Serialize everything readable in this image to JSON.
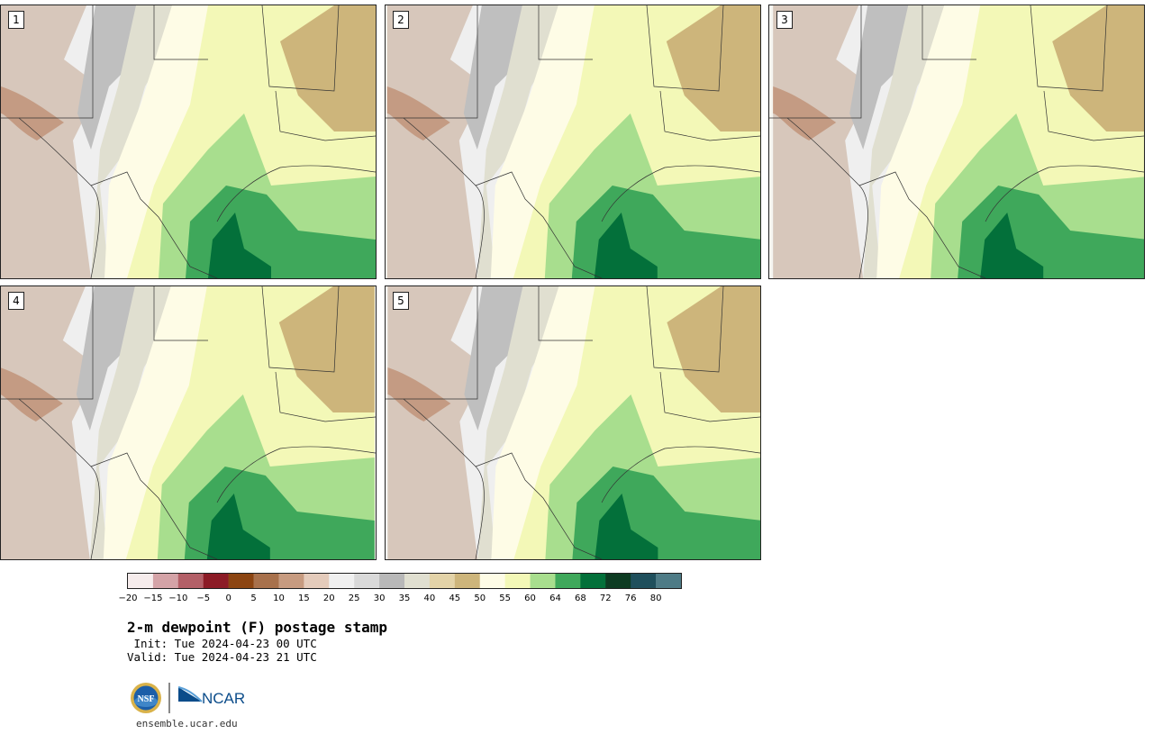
{
  "panels": [
    {
      "label": "1"
    },
    {
      "label": "2"
    },
    {
      "label": "3"
    },
    {
      "label": "4"
    },
    {
      "label": "5"
    }
  ],
  "colorbar": {
    "ticks": [
      "−20",
      "−15",
      "−10",
      "−5",
      "0",
      "5",
      "10",
      "15",
      "20",
      "25",
      "30",
      "35",
      "40",
      "45",
      "50",
      "55",
      "60",
      "64",
      "68",
      "72",
      "76",
      "80"
    ],
    "colors": [
      "#f6ecec",
      "#d4a3a7",
      "#b35f67",
      "#8c1b26",
      "#8c4512",
      "#a8714c",
      "#c79b80",
      "#e4cbbb",
      "#f0f0f0",
      "#d9d9d9",
      "#b8b8b8",
      "#e0dfd0",
      "#e3d3a8",
      "#cdb57b",
      "#fefce6",
      "#f3f8b7",
      "#a8de8e",
      "#3fa85b",
      "#03703a",
      "#0d3b22",
      "#1f4f5c",
      "#4e7b86"
    ]
  },
  "title": "2-m dewpoint (F) postage stamp",
  "init": " Init: Tue 2024-04-23 00 UTC",
  "valid": "Valid: Tue 2024-04-23 21 UTC",
  "logo_nsf": "NSF",
  "logo_ncar": "NCAR",
  "url": "ensemble.ucar.edu"
}
